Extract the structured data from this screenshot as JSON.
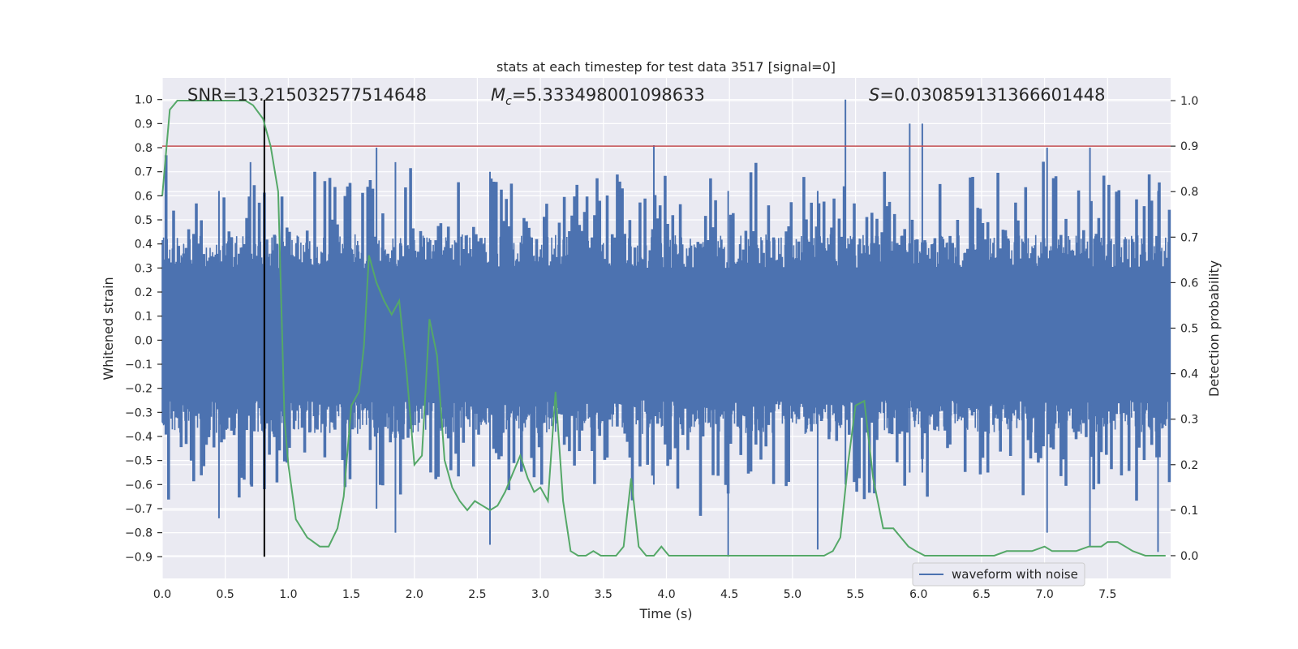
{
  "chart_data": {
    "type": "line",
    "title": "stats at each timestep for test data 3517 [signal=0]",
    "xlabel": "Time (s)",
    "ylabel_left": "Whitened strain",
    "ylabel_right": "Detection probability",
    "xlim": [
      0.0,
      8.0
    ],
    "ylim_left": [
      -0.99,
      1.09
    ],
    "ylim_right": [
      -0.05,
      1.05
    ],
    "x_ticks": [
      "0.0",
      "0.5",
      "1.0",
      "1.5",
      "2.0",
      "2.5",
      "3.0",
      "3.5",
      "4.0",
      "4.5",
      "5.0",
      "5.5",
      "6.0",
      "6.5",
      "7.0",
      "7.5"
    ],
    "y_ticks_left": [
      "-0.9",
      "-0.8",
      "-0.7",
      "-0.6",
      "-0.5",
      "-0.4",
      "-0.3",
      "-0.2",
      "-0.1",
      "0.0",
      "0.1",
      "0.2",
      "0.3",
      "0.4",
      "0.5",
      "0.6",
      "0.7",
      "0.8",
      "0.9",
      "1.0"
    ],
    "y_ticks_right": [
      "0.0",
      "0.1",
      "0.2",
      "0.3",
      "0.4",
      "0.5",
      "0.6",
      "0.7",
      "0.8",
      "0.9",
      "1.0"
    ],
    "grid": true,
    "legend": {
      "entries": [
        "waveform with noise"
      ],
      "placement": "lower-right"
    },
    "annotations": {
      "snr": "SNR=13.215032577514648",
      "mc_symbol": "M",
      "mc_sub": "c",
      "mc_value": "=5.333498001098633",
      "s_symbol": "S",
      "s_value": "=0.030859131366601448"
    },
    "threshold": {
      "axis": "right",
      "value": 0.9,
      "color": "#c44e52"
    },
    "marker": {
      "x": 0.81,
      "y_range": [
        -0.9,
        1.0
      ],
      "color": "#000000"
    },
    "strain": {
      "name": "waveform with noise",
      "color": "#4c72b0",
      "sample_count": 400,
      "tall_spikes": [
        {
          "x": 0.7,
          "top": 0.74,
          "bottom": -0.6
        },
        {
          "x": 5.42,
          "top": 1.0,
          "bottom": -0.6
        },
        {
          "x": 5.93,
          "top": 0.9,
          "bottom": -0.55
        },
        {
          "x": 6.03,
          "top": 0.9,
          "bottom": -0.55
        },
        {
          "x": 4.49,
          "top": 0.62,
          "bottom": -0.9
        },
        {
          "x": 5.2,
          "top": 0.62,
          "bottom": -0.87
        },
        {
          "x": 7.02,
          "top": 0.8,
          "bottom": -0.8
        },
        {
          "x": 7.36,
          "top": 0.8,
          "bottom": -0.86
        },
        {
          "x": 7.9,
          "top": 0.62,
          "bottom": -0.88
        },
        {
          "x": 3.9,
          "top": 0.81,
          "bottom": -0.6
        },
        {
          "x": 0.45,
          "top": 0.62,
          "bottom": -0.74
        },
        {
          "x": 2.6,
          "top": 0.7,
          "bottom": -0.85
        },
        {
          "x": 1.85,
          "top": 0.74,
          "bottom": -0.8
        },
        {
          "x": 1.7,
          "top": 0.8,
          "bottom": -0.7
        }
      ]
    },
    "probability": {
      "color": "#55a868",
      "x": [
        0.0,
        0.06,
        0.12,
        0.2,
        0.3,
        0.4,
        0.5,
        0.6,
        0.66,
        0.72,
        0.8,
        0.86,
        0.92,
        0.97,
        1.0,
        1.06,
        1.15,
        1.25,
        1.32,
        1.39,
        1.44,
        1.5,
        1.56,
        1.6,
        1.64,
        1.7,
        1.76,
        1.82,
        1.88,
        1.94,
        2.0,
        2.06,
        2.12,
        2.18,
        2.24,
        2.3,
        2.36,
        2.42,
        2.48,
        2.54,
        2.6,
        2.66,
        2.72,
        2.78,
        2.84,
        2.9,
        2.95,
        3.0,
        3.06,
        3.12,
        3.18,
        3.24,
        3.3,
        3.36,
        3.42,
        3.48,
        3.54,
        3.6,
        3.66,
        3.72,
        3.78,
        3.84,
        3.9,
        3.96,
        4.02,
        4.08,
        4.5,
        4.7,
        4.9,
        5.1,
        5.25,
        5.32,
        5.38,
        5.44,
        5.5,
        5.57,
        5.64,
        5.72,
        5.8,
        5.86,
        5.92,
        5.98,
        6.05,
        6.2,
        6.4,
        6.6,
        6.7,
        6.8,
        6.9,
        7.0,
        7.06,
        7.15,
        7.25,
        7.35,
        7.45,
        7.5,
        7.58,
        7.64,
        7.7,
        7.8,
        7.96
      ],
      "y": [
        0.79,
        0.98,
        1.0,
        1.0,
        1.0,
        1.0,
        1.0,
        1.0,
        1.0,
        0.99,
        0.96,
        0.9,
        0.8,
        0.3,
        0.2,
        0.08,
        0.04,
        0.02,
        0.02,
        0.06,
        0.13,
        0.33,
        0.36,
        0.46,
        0.66,
        0.6,
        0.56,
        0.53,
        0.56,
        0.4,
        0.2,
        0.22,
        0.52,
        0.44,
        0.21,
        0.15,
        0.12,
        0.1,
        0.12,
        0.11,
        0.1,
        0.11,
        0.14,
        0.18,
        0.22,
        0.17,
        0.14,
        0.15,
        0.12,
        0.36,
        0.12,
        0.01,
        0.0,
        0.0,
        0.01,
        0.0,
        0.0,
        0.0,
        0.02,
        0.17,
        0.02,
        0.0,
        0.0,
        0.02,
        0.0,
        0.0,
        0.0,
        0.0,
        0.0,
        0.0,
        0.0,
        0.01,
        0.04,
        0.2,
        0.33,
        0.34,
        0.17,
        0.06,
        0.06,
        0.04,
        0.02,
        0.01,
        0.0,
        0.0,
        0.0,
        0.0,
        0.01,
        0.01,
        0.01,
        0.02,
        0.01,
        0.01,
        0.01,
        0.02,
        0.02,
        0.03,
        0.03,
        0.02,
        0.01,
        0.0,
        0.0
      ]
    }
  }
}
